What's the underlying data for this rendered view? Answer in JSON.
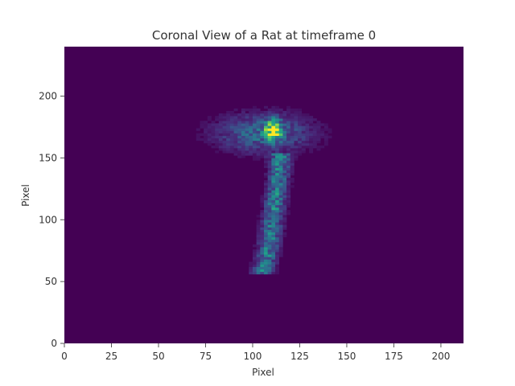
{
  "chart_data": {
    "type": "heatmap",
    "title": "Coronal View of a Rat at timeframe 0",
    "xlabel": "Pixel",
    "ylabel": "Pixel",
    "xlim": [
      0,
      212
    ],
    "ylim": [
      0,
      240
    ],
    "xticks": [
      0,
      25,
      50,
      75,
      100,
      125,
      150,
      175,
      200
    ],
    "yticks": [
      0,
      50,
      100,
      150,
      200
    ],
    "colormap": "viridis",
    "background_color": "#440154",
    "intensity_regions": [
      {
        "region": "head",
        "center_x": 106,
        "center_y": 170,
        "spread_x": 26,
        "spread_y": 16,
        "peak_intensity": 0.35
      },
      {
        "region": "hotspot",
        "center_x": 111,
        "center_y": 173,
        "spread_x": 4,
        "spread_y": 8,
        "peak_intensity": 0.85
      },
      {
        "region": "body",
        "x_at_top": 115,
        "y_top": 150,
        "x_at_bottom": 105,
        "y_bottom": 58,
        "width": 5,
        "peak_intensity": 0.45
      }
    ]
  }
}
